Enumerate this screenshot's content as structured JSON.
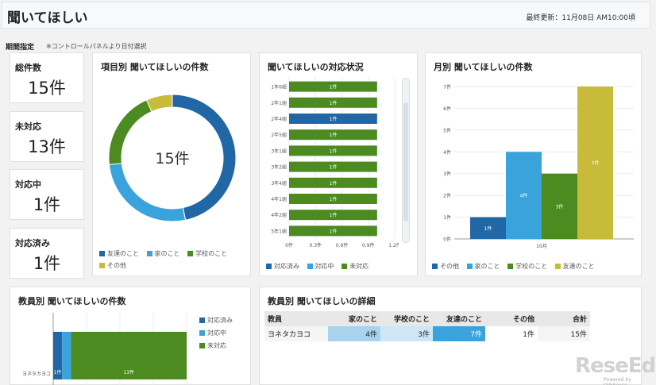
{
  "header": {
    "title": "聞いてほしい",
    "updated": "最終更新：11月08日 AM10:00頃"
  },
  "period": {
    "label": "期間指定",
    "note": "※コントロールパネルより日付選択"
  },
  "kpis": [
    {
      "label": "総件数",
      "value": "15件"
    },
    {
      "label": "未対応",
      "value": "13件"
    },
    {
      "label": "対応中",
      "value": "1件"
    },
    {
      "label": "対応済み",
      "value": "1件"
    }
  ],
  "colors": {
    "dark_blue": "#2166a5",
    "light_blue": "#3ba3db",
    "green": "#4b8b1f",
    "yellow": "#c9bb3a"
  },
  "donut": {
    "title": "項目別 聞いてほしいの件数",
    "center_label": "15件",
    "chart_data": {
      "type": "pie",
      "slices": [
        {
          "name": "友達のこと",
          "value": 7,
          "color": "#2166a5"
        },
        {
          "name": "家のこと",
          "value": 4,
          "color": "#3ba3db"
        },
        {
          "name": "学校のこと",
          "value": 3,
          "color": "#4b8b1f"
        },
        {
          "name": "その他",
          "value": 1,
          "color": "#c9bb3a"
        }
      ]
    },
    "legend": [
      "友達のこと",
      "家のこと",
      "学校のこと",
      "その他"
    ]
  },
  "status": {
    "title": "聞いてほしいの対応状況",
    "chart_data": {
      "type": "bar",
      "orientation": "horizontal",
      "stacked": true,
      "categories": [
        "1年6組",
        "2年1組",
        "2年4組",
        "2年5組",
        "3年1組",
        "3年2組",
        "3年4組",
        "4年1組",
        "4年2組",
        "5年1組"
      ],
      "series": [
        {
          "name": "対応済み",
          "color": "#2166a5",
          "values": [
            0,
            0,
            1,
            0,
            0,
            0,
            0,
            0,
            0,
            0
          ]
        },
        {
          "name": "対応中",
          "color": "#3ba3db",
          "values": [
            0,
            0,
            0,
            0,
            0,
            0,
            0,
            0,
            0,
            0
          ]
        },
        {
          "name": "未対応",
          "color": "#4b8b1f",
          "values": [
            1,
            1,
            0,
            1,
            1,
            1,
            1,
            1,
            1,
            1
          ]
        }
      ],
      "bar_labels": [
        "1件",
        "1件",
        "1件",
        "1件",
        "1件",
        "1件",
        "1件",
        "1件",
        "1件",
        "1件"
      ],
      "xticks": [
        "0件",
        "0.3件",
        "0.6件",
        "0.9件",
        "1.2件"
      ],
      "xlim": [
        0,
        1.2
      ]
    },
    "legend": [
      "対応済み",
      "対応中",
      "未対応"
    ]
  },
  "monthly": {
    "title": "月別 聞いてほしいの件数",
    "chart_data": {
      "type": "bar",
      "categories": [
        "10月"
      ],
      "series": [
        {
          "name": "その他",
          "color": "#2166a5",
          "values": [
            1
          ],
          "label": "1件"
        },
        {
          "name": "家のこと",
          "color": "#3ba3db",
          "values": [
            4
          ],
          "label": "4件"
        },
        {
          "name": "学校のこと",
          "color": "#4b8b1f",
          "values": [
            3
          ],
          "label": "3件"
        },
        {
          "name": "友達のこと",
          "color": "#c9bb3a",
          "values": [
            7
          ],
          "label": "7件"
        }
      ],
      "yticks": [
        "0件",
        "1件",
        "2件",
        "3件",
        "4件",
        "5件",
        "6件",
        "7件"
      ],
      "ylim": [
        0,
        7
      ]
    },
    "legend": [
      "その他",
      "家のこと",
      "学校のこと",
      "友達のこと"
    ]
  },
  "teachers": {
    "title": "教員別 聞いてほしいの件数",
    "chart_data": {
      "type": "bar",
      "orientation": "horizontal",
      "stacked": true,
      "categories": [
        "ヨネタカヨコ"
      ],
      "series": [
        {
          "name": "対応済み",
          "color": "#2166a5",
          "values": [
            1
          ],
          "label": "1件"
        },
        {
          "name": "対応中",
          "color": "#3ba3db",
          "values": [
            1
          ],
          "label": ""
        },
        {
          "name": "未対応",
          "color": "#4b8b1f",
          "values": [
            13
          ],
          "label": "13件"
        }
      ]
    },
    "legend": [
      "対応済み",
      "対応中",
      "未対応"
    ]
  },
  "detail": {
    "title": "教員別 聞いてほしいの詳細",
    "columns": [
      "教員",
      "家のこと",
      "学校のこと",
      "友達のこと",
      "その他",
      "合計"
    ],
    "rows": [
      {
        "cells": [
          "ヨネタカヨコ",
          "4件",
          "3件",
          "7件",
          "1件",
          "15件"
        ]
      }
    ]
  },
  "watermark": {
    "text": "ReseEd",
    "sub": "Powered by QlikSense"
  }
}
